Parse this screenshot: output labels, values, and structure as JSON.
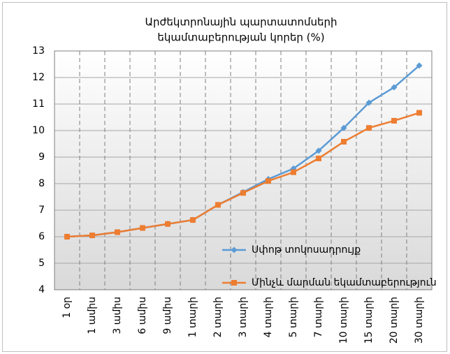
{
  "chart_data": {
    "type": "line",
    "title": [
      "Արժեկտրոնային պարտատոմսերի",
      "եկամտաբերության կորեր (%)"
    ],
    "categories": [
      "1 օր",
      "1 ամիս",
      "3 ամիս",
      "6 ամիս",
      "9 ամիս",
      "1 տարի",
      "2 տարի",
      "3 տարի",
      "4 տարի",
      "5 տարի",
      "7 տարի",
      "10 տարի",
      "15 տարի",
      "20 տարի",
      "30 տարի"
    ],
    "series": [
      {
        "name": "Սփոթ տոկոսադրույք",
        "color": "#5b9bd5",
        "marker": "diamond",
        "values": [
          6.0,
          6.05,
          6.17,
          6.33,
          6.48,
          6.63,
          7.2,
          7.68,
          8.17,
          8.57,
          9.24,
          10.1,
          11.05,
          11.63,
          12.45
        ]
      },
      {
        "name": "Մինչև մարման եկամտաբերություն",
        "color": "#ed7d31",
        "marker": "square",
        "values": [
          6.0,
          6.05,
          6.17,
          6.33,
          6.48,
          6.63,
          7.2,
          7.65,
          8.1,
          8.43,
          8.95,
          9.58,
          10.1,
          10.37,
          10.67
        ]
      }
    ],
    "ylim": [
      4,
      13
    ],
    "yticks": [
      4,
      5,
      6,
      7,
      8,
      9,
      10,
      11,
      12,
      13
    ],
    "grid": true,
    "legend": "lower right"
  }
}
